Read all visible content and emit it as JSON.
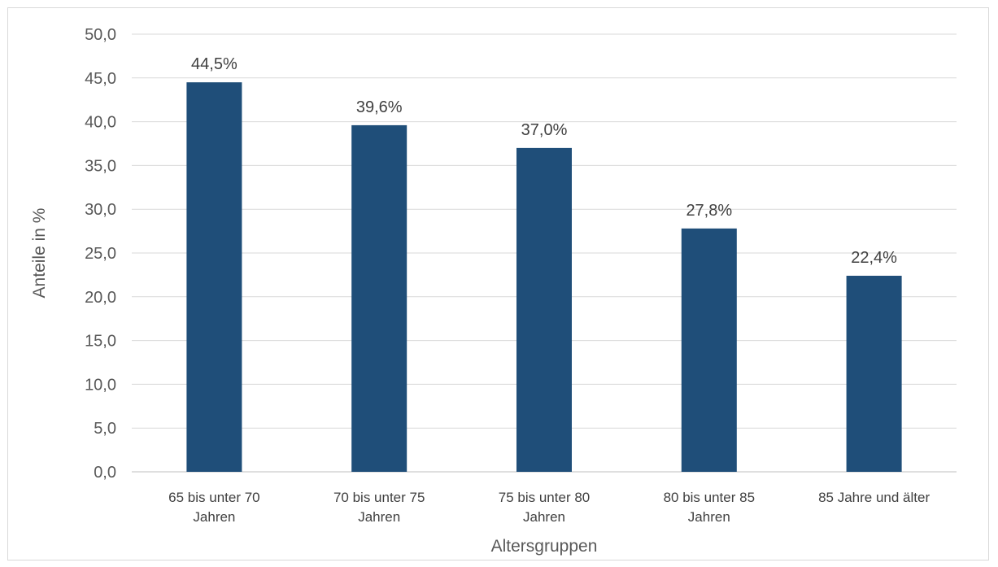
{
  "chart_data": {
    "type": "bar",
    "categories": [
      [
        "65 bis unter 70",
        "Jahren"
      ],
      [
        "70 bis unter 75",
        "Jahren"
      ],
      [
        "75 bis unter 80",
        "Jahren"
      ],
      [
        "80 bis unter 85",
        "Jahren"
      ],
      [
        "85 Jahre und älter"
      ]
    ],
    "values": [
      44.5,
      39.6,
      37.0,
      27.8,
      22.4
    ],
    "data_labels": [
      "44,5%",
      "39,6%",
      "37,0%",
      "27,8%",
      "22,4%"
    ],
    "yticks": [
      0,
      5,
      10,
      15,
      20,
      25,
      30,
      35,
      40,
      45,
      50
    ],
    "ytick_labels": [
      "0,0",
      "5,0",
      "10,0",
      "15,0",
      "20,0",
      "25,0",
      "30,0",
      "35,0",
      "40,0",
      "45,0",
      "50,0"
    ],
    "ylim": [
      0,
      50
    ],
    "xlabel": "Altersgruppen",
    "ylabel": "Anteile in %",
    "grid": true,
    "legend": "none",
    "colors": {
      "bar": "#1f4e79",
      "grid": "#d9d9d9",
      "axis": "#bfbfbf"
    }
  }
}
